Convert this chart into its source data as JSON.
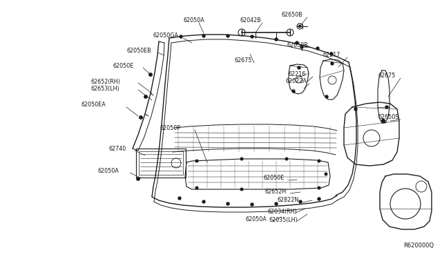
{
  "bg_color": "#ffffff",
  "diagram_id": "R620000Q",
  "fig_width": 6.4,
  "fig_height": 3.72,
  "dpi": 100,
  "lc": "#1a1a1a",
  "fs": 5.8,
  "parts_labels": [
    [
      "62050A",
      265,
      30
    ],
    [
      "62050GA",
      222,
      52
    ],
    [
      "62050EB",
      183,
      73
    ],
    [
      "62050E",
      163,
      95
    ],
    [
      "62652(RH)",
      132,
      118
    ],
    [
      "62653(LH)",
      132,
      128
    ],
    [
      "62050EA",
      118,
      152
    ],
    [
      "62042B",
      348,
      30
    ],
    [
      "62675",
      340,
      88
    ],
    [
      "62650B",
      408,
      22
    ],
    [
      "62650B",
      415,
      65
    ],
    [
      "62217",
      468,
      80
    ],
    [
      "62216",
      418,
      108
    ],
    [
      "62022A",
      413,
      118
    ],
    [
      "62675",
      548,
      110
    ],
    [
      "62650S",
      548,
      170
    ],
    [
      "62050P",
      232,
      185
    ],
    [
      "62740",
      158,
      215
    ],
    [
      "62050A",
      142,
      248
    ],
    [
      "62050E",
      382,
      258
    ],
    [
      "62652H",
      384,
      278
    ],
    [
      "62822N",
      402,
      290
    ],
    [
      "62034(RH)",
      388,
      306
    ],
    [
      "62050A",
      355,
      318
    ],
    [
      "62035(LH)",
      390,
      318
    ]
  ]
}
